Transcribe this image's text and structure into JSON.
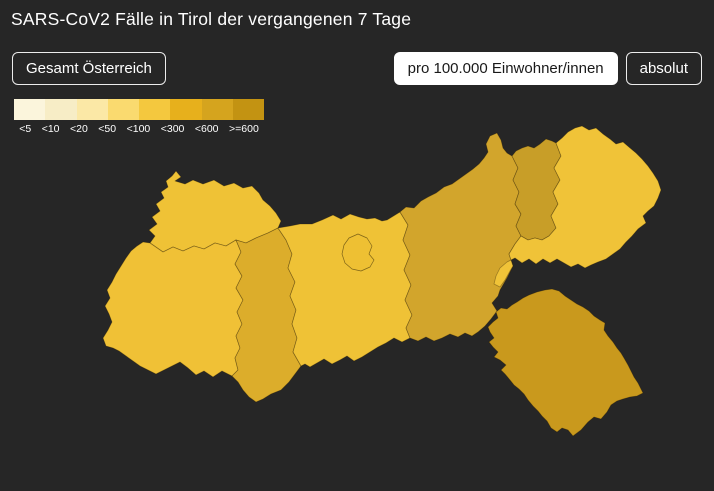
{
  "theme": {
    "background": "#262626",
    "text_color": "#ffffff",
    "button_border": "#ececec",
    "selected_button_bg": "#ffffff",
    "selected_button_text": "#191919",
    "district_stroke": "rgba(35,24,0,0.35)"
  },
  "header": {
    "title": "SARS-CoV2 Fälle in Tirol der vergangenen 7 Tage"
  },
  "toolbar": {
    "region_button_label": "Gesamt Österreich",
    "unit_toggle": [
      {
        "label": "pro 100.000 Einwohner/innen",
        "selected": true
      },
      {
        "label": "absolut",
        "selected": false
      }
    ]
  },
  "legend": {
    "bins": [
      {
        "label": "<5",
        "color": "#fbf5dc"
      },
      {
        "label": "<10",
        "color": "#f7edc6"
      },
      {
        "label": "<20",
        "color": "#fbe8a6"
      },
      {
        "label": "<50",
        "color": "#fada6f"
      },
      {
        "label": "<100",
        "color": "#f4c83e"
      },
      {
        "label": "<300",
        "color": "#e7b01c"
      },
      {
        "label": "<600",
        "color": "#d5a41e"
      },
      {
        "label": ">=600",
        "color": "#c39312"
      }
    ]
  },
  "map": {
    "district_colors": {
      "reutte": "#efc236",
      "landeck": "#f0c136",
      "imst": "#dcad2b",
      "innsbruck_land": "#efc236",
      "innsbruck_stadt": "#eec033",
      "schwaz": "#d2a52c",
      "kufstein": "#c89e28",
      "kitzbuehel": "#f0c338",
      "lienz": "#c9991d"
    }
  }
}
